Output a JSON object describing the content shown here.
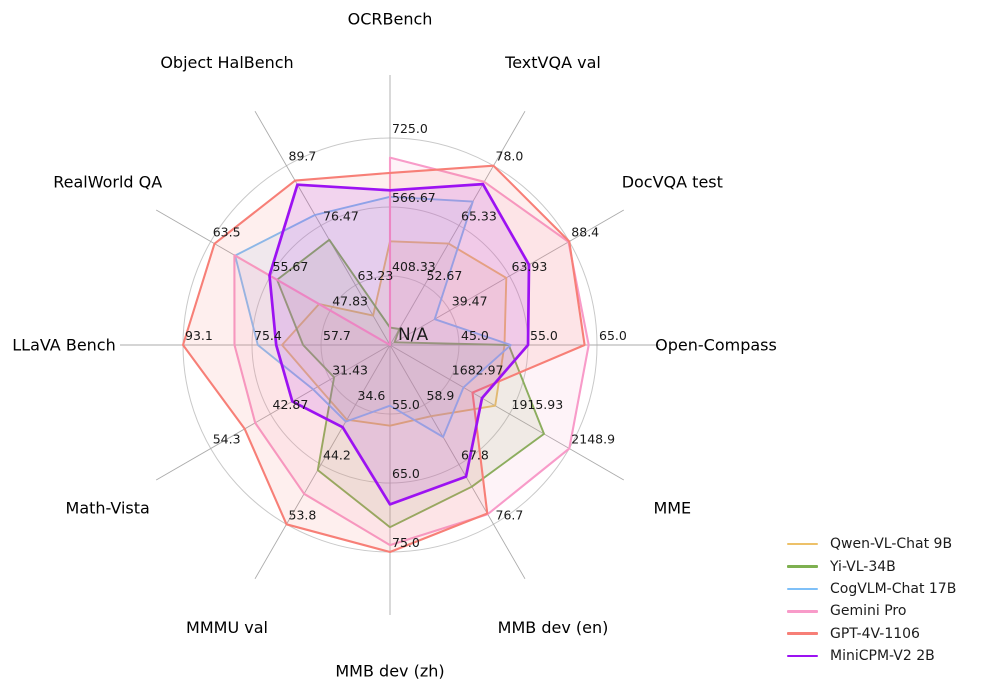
{
  "chart_data": {
    "type": "radar",
    "center_label": "N/A",
    "layout": {
      "center": [
        390,
        345
      ],
      "outer_radius": 207,
      "spoke_radius": 270,
      "title_radius": 326,
      "n_rings": 3,
      "grid_color": "#c9c9c9",
      "spoke_color": "#ababab",
      "legend_position": "bottom-right",
      "fill_opacity": 0.12
    },
    "axes": [
      {
        "label": "OCRBench",
        "min": 250,
        "max": 725,
        "ticks": [
          "725.0",
          "566.67",
          "408.33"
        ]
      },
      {
        "label": "TextVQA val",
        "min": 40,
        "max": 78,
        "ticks": [
          "78.0",
          "65.33",
          "52.67"
        ]
      },
      {
        "label": "DocVQA test",
        "min": 15,
        "max": 88.4,
        "ticks": [
          "88.4",
          "63.93",
          "39.47"
        ]
      },
      {
        "label": "Open-Compass",
        "min": 35,
        "max": 65,
        "ticks": [
          "65.0",
          "55.0",
          "45.0"
        ]
      },
      {
        "label": "MME",
        "min": 1450,
        "max": 2148.9,
        "ticks": [
          "2148.9",
          "1915.93",
          "1682.97"
        ]
      },
      {
        "label": "MMB dev (en)",
        "min": 50,
        "max": 76.7,
        "ticks": [
          "76.7",
          "67.8",
          "58.9"
        ]
      },
      {
        "label": "MMB dev (zh)",
        "min": 45,
        "max": 75,
        "ticks": [
          "75.0",
          "65.0",
          "55.0"
        ]
      },
      {
        "label": "MMMU val",
        "min": 25,
        "max": 53.8,
        "ticks": [
          "53.8",
          "44.2",
          "34.6"
        ]
      },
      {
        "label": "Math-Vista",
        "min": 20,
        "max": 54.3,
        "ticks": [
          "54.3",
          "42.87",
          "31.43"
        ]
      },
      {
        "label": "LLaVA Bench",
        "min": 40,
        "max": 93.1,
        "ticks": [
          "93.1",
          "75.4",
          "57.7"
        ]
      },
      {
        "label": "RealWorld QA",
        "min": 40,
        "max": 63.5,
        "ticks": [
          "63.5",
          "55.67",
          "47.83"
        ]
      },
      {
        "label": "Object HalBench",
        "min": 50,
        "max": 89.7,
        "ticks": [
          "89.7",
          "76.47",
          "63.23"
        ]
      }
    ],
    "series": [
      {
        "name": "Qwen-VL-Chat 9B",
        "color": "#edc169",
        "width": 1.9,
        "values": [
          488,
          61.5,
          62.6,
          51.6,
          1860.0,
          60.6,
          56.7,
          37.0,
          33.8,
          67.7,
          49.3,
          56.5
        ]
      },
      {
        "name": "Yi-VL-34B",
        "color": "#7eb050",
        "width": 1.9,
        "values": [
          290,
          43.4,
          16.9,
          52.2,
          2050.2,
          71.1,
          71.4,
          45.1,
          30.7,
          62.3,
          54.8,
          73.3
        ]
      },
      {
        "name": "CogVLM-Chat 17B",
        "color": "#7fc0f8",
        "width": 1.9,
        "values": [
          590,
          70.4,
          33.3,
          52.5,
          1736.6,
          63.7,
          53.8,
          37.3,
          34.7,
          73.9,
          60.3,
          78.8
        ]
      },
      {
        "name": "Gemini Pro",
        "color": "#f89bc9",
        "width": 2.1,
        "values": [
          680,
          74.6,
          88.1,
          63.8,
          2148.9,
          75.2,
          74.0,
          48.9,
          45.8,
          79.9,
          60.4,
          null
        ]
      },
      {
        "name": "GPT-4V-1106",
        "color": "#f77f77",
        "width": 2.1,
        "values": [
          645,
          78.0,
          88.4,
          63.2,
          1771.5,
          75.1,
          75.0,
          53.8,
          47.8,
          93.1,
          63.0,
          86.4
        ]
      },
      {
        "name": "MiniCPM-V2 2B",
        "color": "#9c12f2",
        "width": 2.7,
        "values": [
          605,
          74.1,
          71.9,
          55.0,
          1808.6,
          69.6,
          68.1,
          38.2,
          38.7,
          69.2,
          55.8,
          85.5
        ]
      }
    ]
  }
}
